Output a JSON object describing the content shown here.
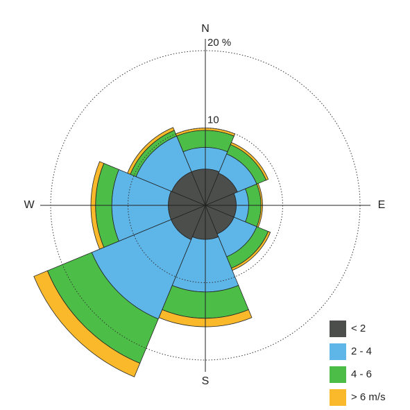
{
  "chart_data": {
    "type": "windrose",
    "categories": [
      "N",
      null,
      "E",
      null,
      "S",
      null,
      "W",
      null
    ],
    "series": [
      {
        "name": "< 2",
        "color": "#4b4e4b",
        "values": [
          4.7,
          4.5,
          4.0,
          4.0,
          4.4,
          4.8,
          4.8,
          4.7
        ]
      },
      {
        "name": "2 - 4",
        "color": "#5db5e8",
        "values": [
          2.8,
          2.7,
          1.6,
          3.2,
          6.8,
          11.1,
          7.3,
          5.0
        ]
      },
      {
        "name": "4 - 6",
        "color": "#4cbe47",
        "values": [
          2.2,
          1.3,
          1.6,
          1.6,
          3.4,
          6.2,
          2.1,
          0.8
        ]
      },
      {
        "name": "> 6 m/s",
        "color": "#f9b92a",
        "values": [
          0.3,
          0.3,
          0.2,
          0.3,
          1.1,
          1.9,
          0.6,
          0.4
        ]
      }
    ],
    "rlim": [
      0,
      20
    ],
    "rticks": [
      10,
      {
        "value": 20,
        "label": "20 %"
      }
    ],
    "grid": true,
    "legend": "lower-right"
  }
}
